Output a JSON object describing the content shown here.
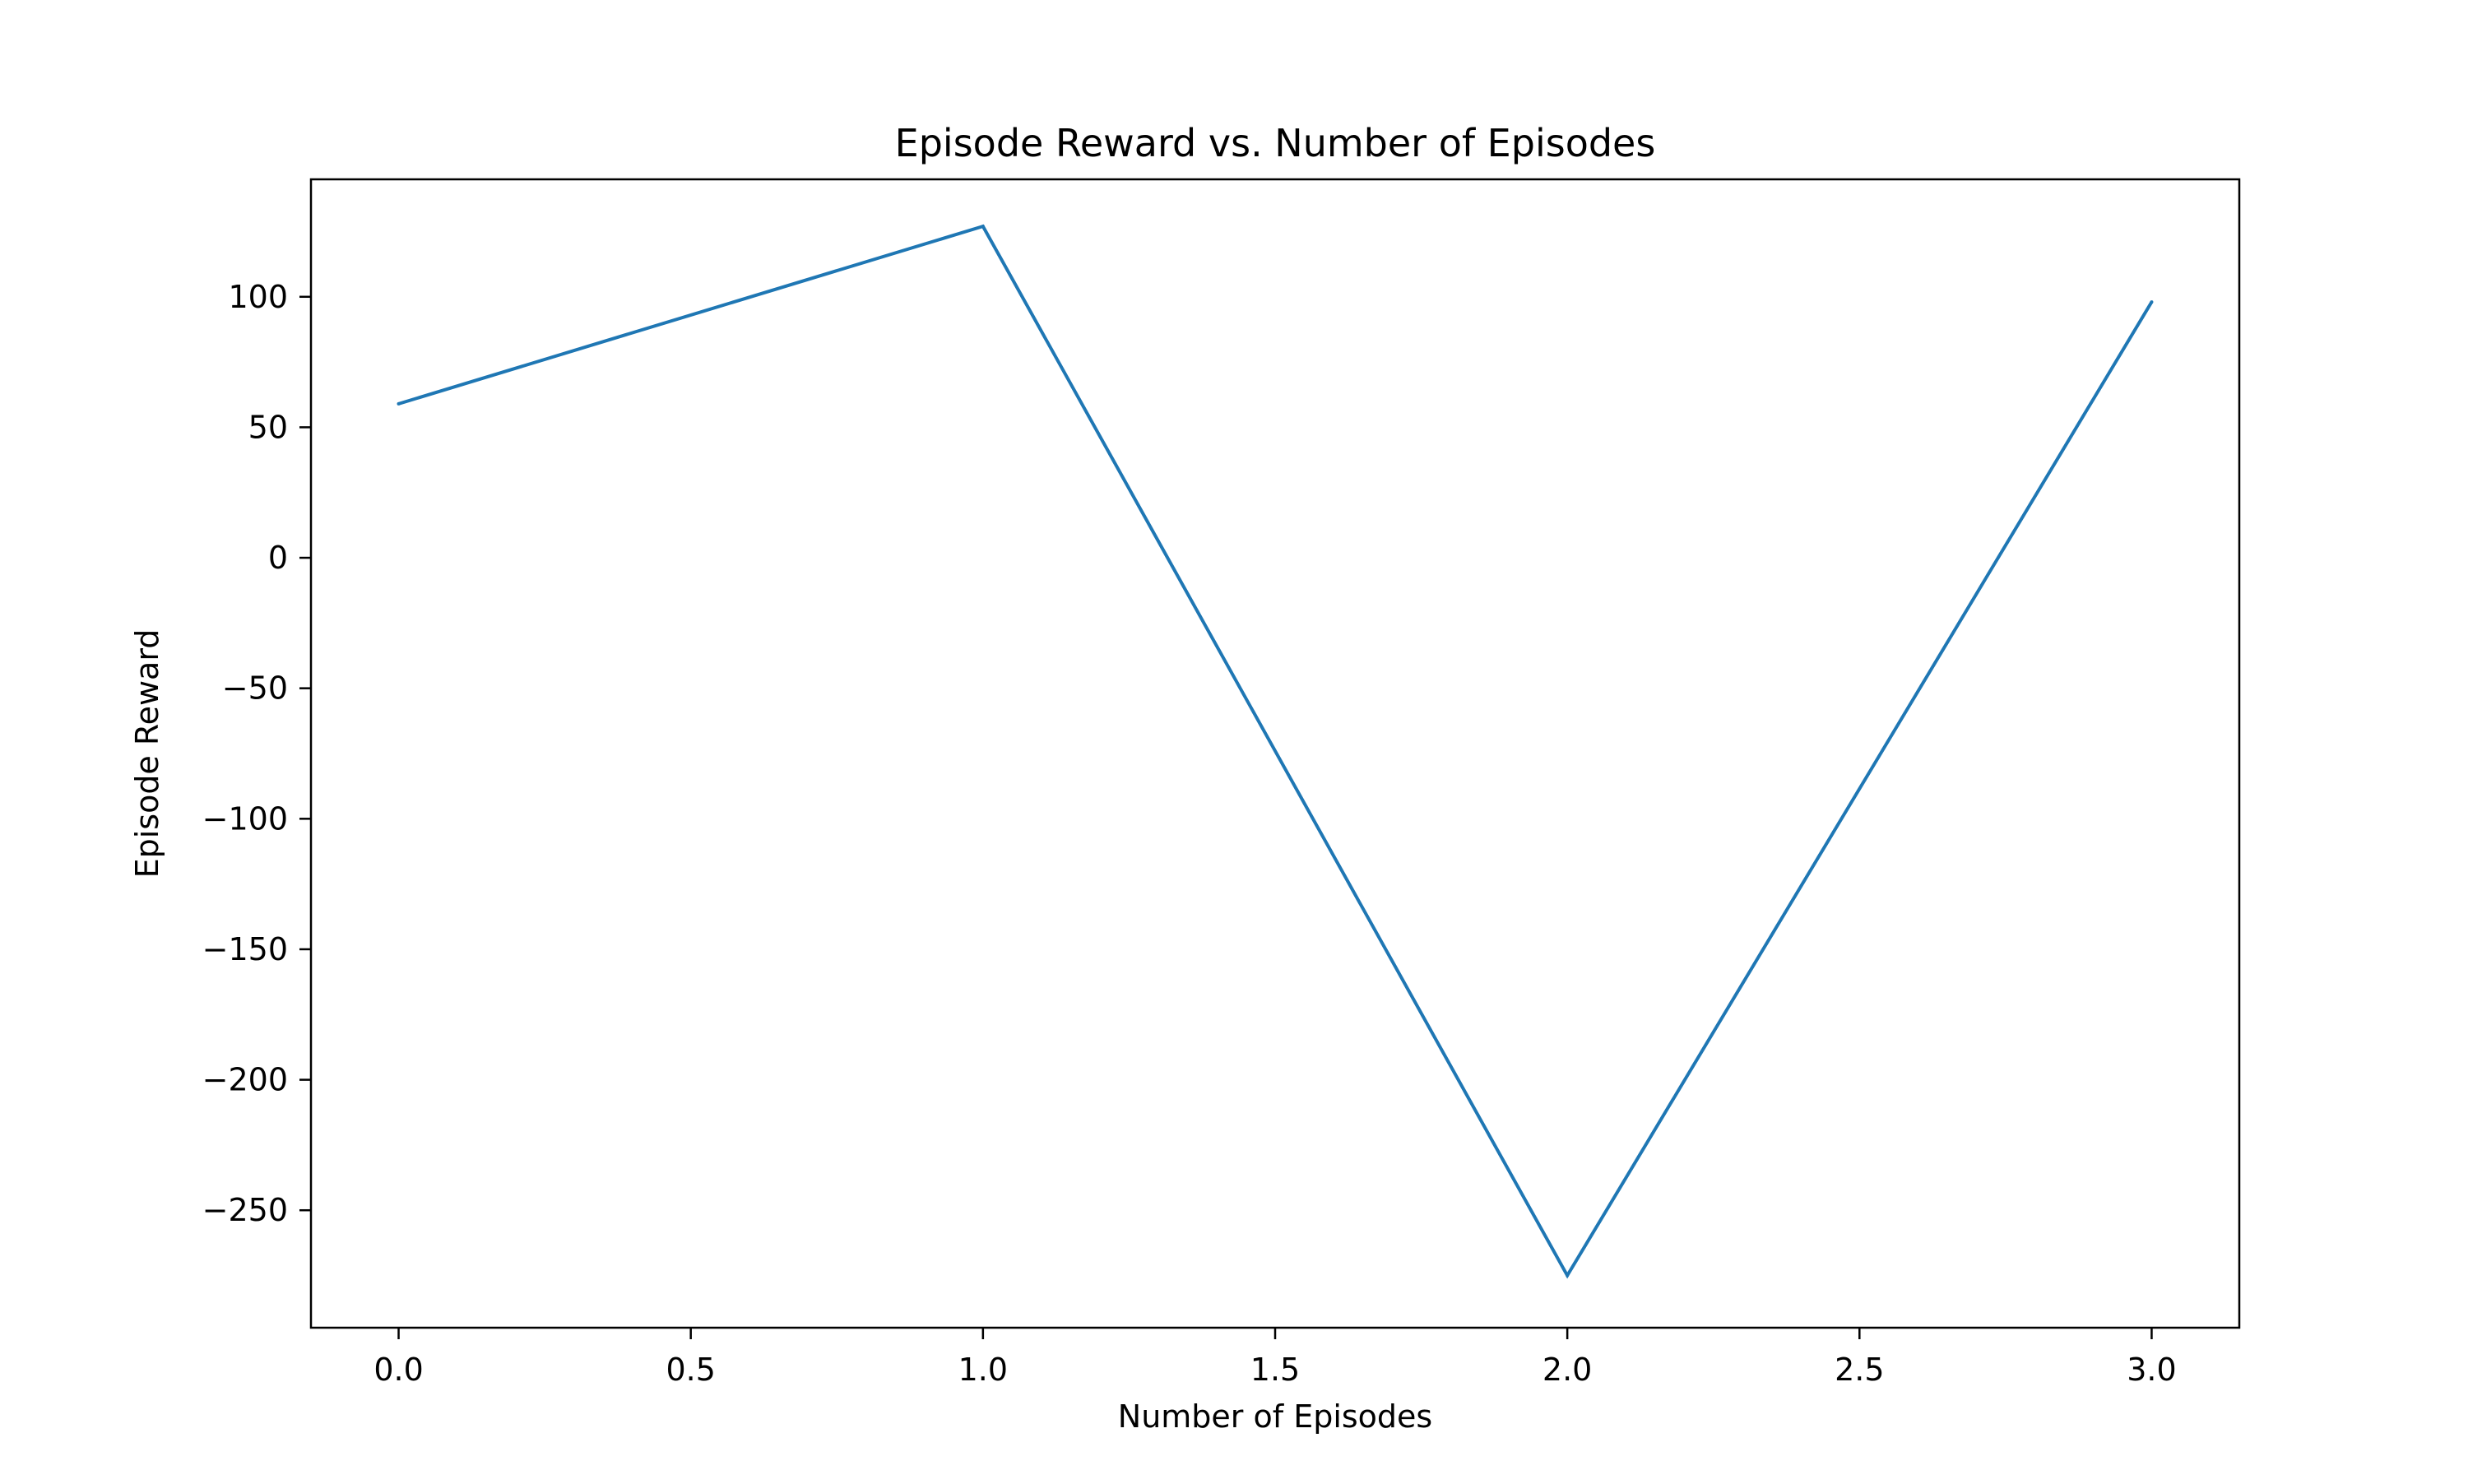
{
  "chart_data": {
    "type": "line",
    "title": "Episode Reward vs. Number of Episodes",
    "xlabel": "Number of Episodes",
    "ylabel": "Episode Reward",
    "xlim": [
      -0.15,
      3.15
    ],
    "ylim": [
      -295,
      145
    ],
    "xticks": [
      0.0,
      0.5,
      1.0,
      1.5,
      2.0,
      2.5,
      3.0
    ],
    "xtick_labels": [
      "0.0",
      "0.5",
      "1.0",
      "1.5",
      "2.0",
      "2.5",
      "3.0"
    ],
    "yticks": [
      100,
      50,
      0,
      -50,
      -100,
      -150,
      -200,
      -250
    ],
    "ytick_labels": [
      "100",
      "50",
      "0",
      "−50",
      "−100",
      "−150",
      "−200",
      "−250"
    ],
    "grid": false,
    "series": [
      {
        "x": [
          0,
          1,
          2,
          3
        ],
        "y": [
          59,
          127,
          -275,
          98
        ],
        "color": "#1f77b4"
      }
    ]
  }
}
